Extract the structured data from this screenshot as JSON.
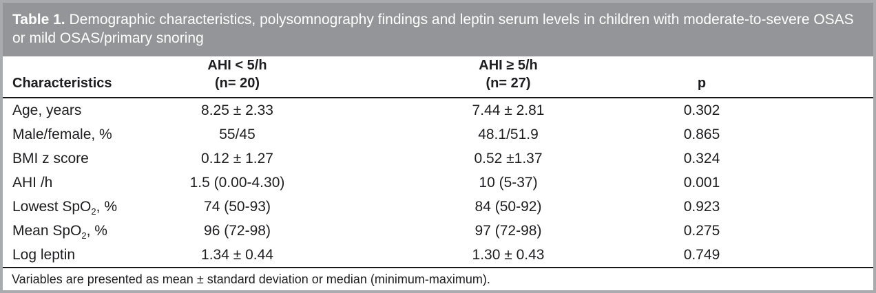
{
  "header": {
    "table_label": "Table 1.",
    "title": "Demographic characteristics, polysomnography findings and leptin serum levels in children with moderate-to-severe OSAS or mild OSAS/primary snoring"
  },
  "table": {
    "columns": {
      "characteristics": "Characteristics",
      "group1_line1": "AHI < 5/h",
      "group1_line2": "(n= 20)",
      "group2_line1": "AHI ≥ 5/h",
      "group2_line2": "(n= 27)",
      "p": "p"
    },
    "rows": [
      {
        "label": "Age, years",
        "label_sub": "",
        "label_post": "",
        "group1": "8.25 ± 2.33",
        "group2": "7.44 ± 2.81",
        "p": "0.302"
      },
      {
        "label": "Male/female, %",
        "label_sub": "",
        "label_post": "",
        "group1": "55/45",
        "group2": "48.1/51.9",
        "p": "0.865"
      },
      {
        "label": "BMI z score",
        "label_sub": "",
        "label_post": "",
        "group1": "0.12 ± 1.27",
        "group2": "0.52 ±1.37",
        "p": "0.324"
      },
      {
        "label": "AHI /h",
        "label_sub": "",
        "label_post": "",
        "group1": "1.5 (0.00-4.30)",
        "group2": "10 (5-37)",
        "p": "0.001"
      },
      {
        "label": "Lowest SpO",
        "label_sub": "2",
        "label_post": ", %",
        "group1": "74 (50-93)",
        "group2": "84 (50-92)",
        "p": "0.923"
      },
      {
        "label": "Mean SpO",
        "label_sub": "2",
        "label_post": ", %",
        "group1": "96 (72-98)",
        "group2": "97 (72-98)",
        "p": "0.275"
      },
      {
        "label": "Log leptin",
        "label_sub": "",
        "label_post": "",
        "group1": "1.34 ± 0.44",
        "group2": "1.30 ± 0.43",
        "p": "0.749"
      }
    ]
  },
  "footnote": "Variables are presented as mean ± standard deviation or median (minimum-maximum).",
  "colors": {
    "title_band": "#939598",
    "outer_border": "#a9abae",
    "rule": "#161616",
    "text": "#1d1d1f",
    "title_text": "#ffffff"
  }
}
